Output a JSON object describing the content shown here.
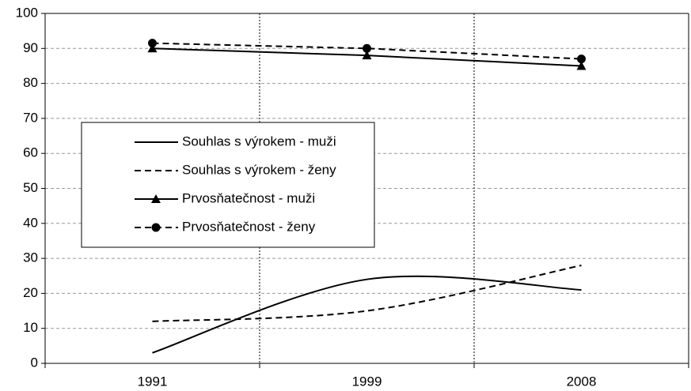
{
  "chart_data": {
    "type": "line",
    "categories": [
      "1991",
      "1999",
      "2008"
    ],
    "series": [
      {
        "name": "Souhlas s výrokem - muži",
        "color": "#000000",
        "line_style": "solid",
        "marker": null,
        "smooth": true,
        "values": [
          3,
          24,
          21
        ]
      },
      {
        "name": "Souhlas s výrokem - ženy",
        "color": "#000000",
        "line_style": "dashed",
        "marker": null,
        "smooth": true,
        "values": [
          12,
          15,
          28
        ]
      },
      {
        "name": "Prvosňatečnost - muži",
        "color": "#000000",
        "line_style": "solid",
        "marker": "triangle",
        "smooth": false,
        "values": [
          90,
          88,
          85
        ]
      },
      {
        "name": "Prvosňatečnost - ženy",
        "color": "#000000",
        "line_style": "dashed",
        "marker": "circle",
        "smooth": false,
        "values": [
          91.5,
          90,
          87
        ]
      }
    ],
    "ylim": [
      0,
      100
    ],
    "yticks": [
      0,
      10,
      20,
      30,
      40,
      50,
      60,
      70,
      80,
      90,
      100
    ],
    "grid": true,
    "xgrid": true,
    "legend": "left"
  }
}
